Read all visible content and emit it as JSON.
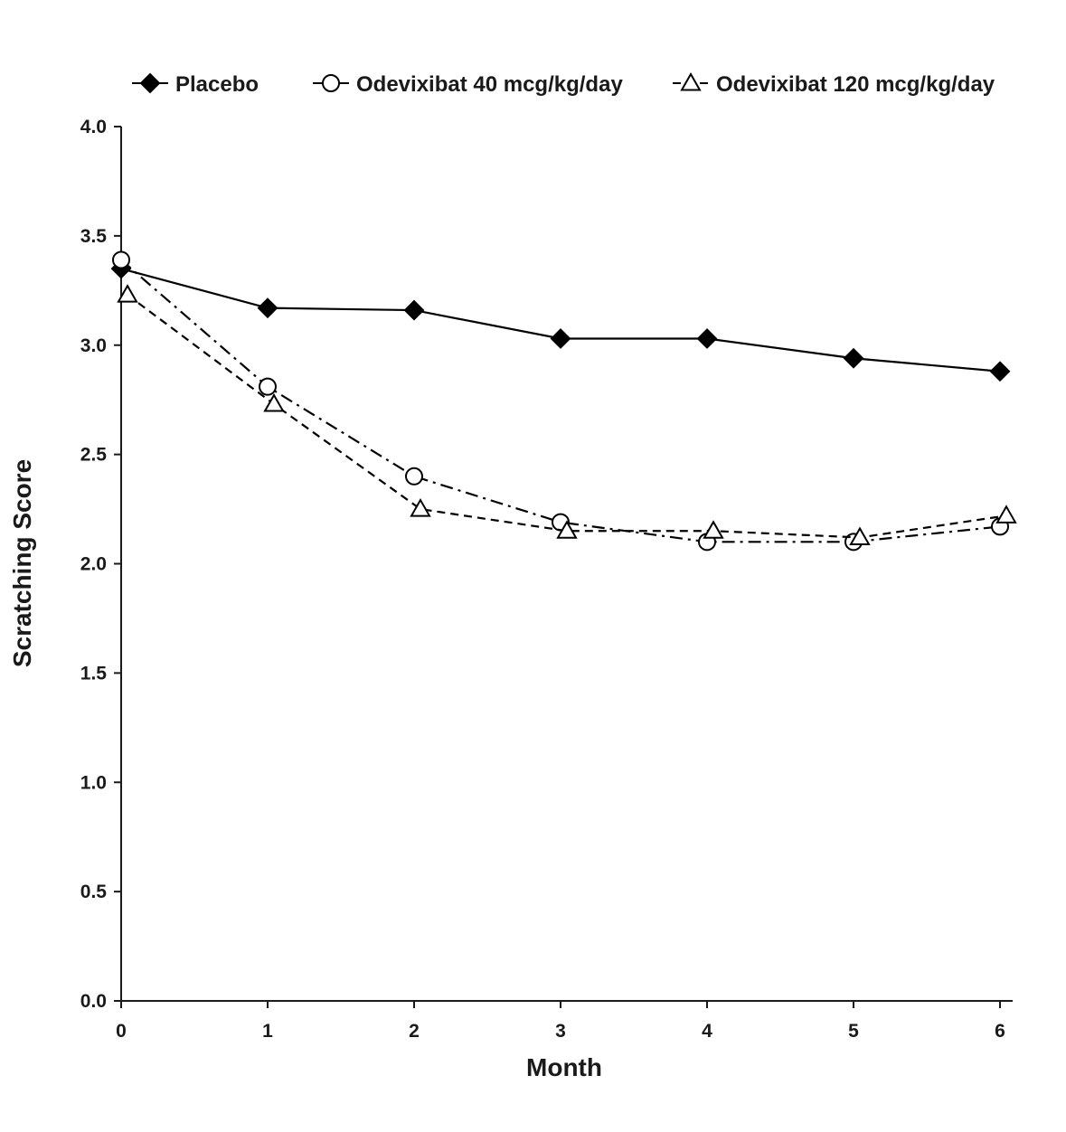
{
  "chart_data": {
    "type": "line",
    "title": "",
    "xlabel": "Month",
    "ylabel": "Scratching Score",
    "x": [
      0,
      1,
      2,
      3,
      4,
      5,
      6
    ],
    "xlim": [
      0,
      6
    ],
    "ylim": [
      0,
      4
    ],
    "x_ticks": [
      "0",
      "1",
      "2",
      "3",
      "4",
      "5",
      "6"
    ],
    "y_ticks": [
      "0.0",
      "0.5",
      "1.0",
      "1.5",
      "2.0",
      "2.5",
      "3.0",
      "3.5",
      "4.0"
    ],
    "grid": false,
    "legend_position": "top",
    "series": [
      {
        "name": "Placebo",
        "marker": "filled-diamond",
        "line_style": "solid",
        "color": "#000000",
        "x": [
          0,
          1,
          2,
          3,
          4,
          5,
          6
        ],
        "values": [
          3.35,
          3.17,
          3.16,
          3.03,
          3.03,
          2.94,
          2.88
        ]
      },
      {
        "name": "Odevixibat 40 mcg/kg/day",
        "marker": "open-circle",
        "line_style": "dash-dot",
        "color": "#000000",
        "x": [
          0,
          1,
          2,
          3,
          4,
          5,
          6
        ],
        "values": [
          3.39,
          2.81,
          2.4,
          2.19,
          2.1,
          2.1,
          2.17
        ]
      },
      {
        "name": "Odevixibat 120 mcg/kg/day",
        "marker": "open-triangle",
        "line_style": "dashed",
        "color": "#000000",
        "x": [
          0,
          1,
          2,
          3,
          4,
          5,
          6
        ],
        "values": [
          3.23,
          2.73,
          2.25,
          2.15,
          2.15,
          2.12,
          2.22
        ]
      }
    ]
  }
}
